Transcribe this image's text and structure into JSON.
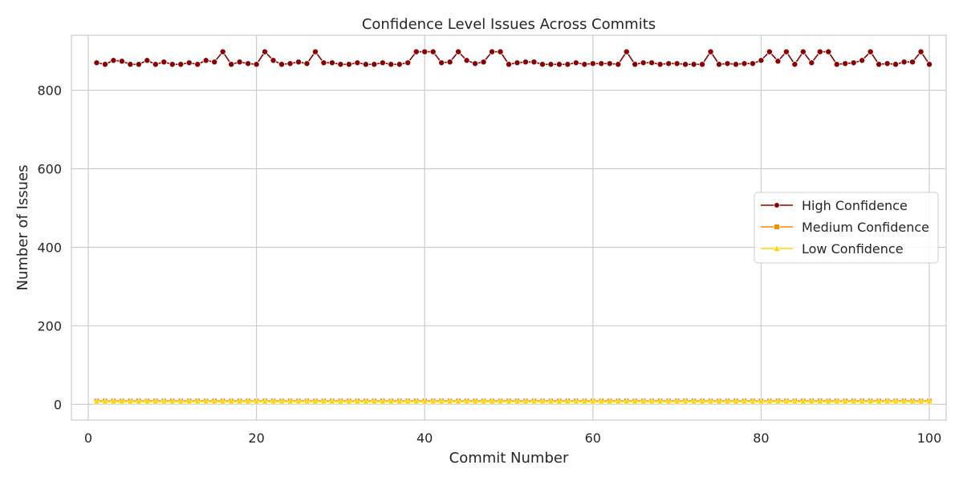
{
  "chart_data": {
    "type": "line",
    "title": "Confidence Level Issues Across Commits",
    "xlabel": "Commit Number",
    "ylabel": "Number of Issues",
    "xlim": [
      -2,
      102
    ],
    "ylim": [
      -40,
      940
    ],
    "xticks": [
      0,
      20,
      40,
      60,
      80,
      100
    ],
    "yticks": [
      0,
      200,
      400,
      600,
      800
    ],
    "grid": true,
    "legend_position": "center-right",
    "x": [
      1,
      2,
      3,
      4,
      5,
      6,
      7,
      8,
      9,
      10,
      11,
      12,
      13,
      14,
      15,
      16,
      17,
      18,
      19,
      20,
      21,
      22,
      23,
      24,
      25,
      26,
      27,
      28,
      29,
      30,
      31,
      32,
      33,
      34,
      35,
      36,
      37,
      38,
      39,
      40,
      41,
      42,
      43,
      44,
      45,
      46,
      47,
      48,
      49,
      50,
      51,
      52,
      53,
      54,
      55,
      56,
      57,
      58,
      59,
      60,
      61,
      62,
      63,
      64,
      65,
      66,
      67,
      68,
      69,
      70,
      71,
      72,
      73,
      74,
      75,
      76,
      77,
      78,
      79,
      80,
      81,
      82,
      83,
      84,
      85,
      86,
      87,
      88,
      89,
      90,
      91,
      92,
      93,
      94,
      95,
      96,
      97,
      98,
      99,
      100
    ],
    "series": [
      {
        "name": "High Confidence",
        "color": "#8b0000",
        "marker": "circle",
        "values": [
          870,
          866,
          876,
          874,
          866,
          866,
          876,
          866,
          872,
          866,
          866,
          870,
          866,
          876,
          872,
          898,
          866,
          872,
          868,
          866,
          898,
          876,
          866,
          868,
          872,
          868,
          898,
          870,
          870,
          866,
          866,
          870,
          866,
          866,
          870,
          866,
          866,
          870,
          898,
          898,
          898,
          870,
          872,
          898,
          876,
          868,
          872,
          898,
          898,
          866,
          870,
          872,
          872,
          866,
          866,
          866,
          866,
          870,
          866,
          868,
          868,
          868,
          866,
          898,
          866,
          870,
          870,
          866,
          868,
          868,
          866,
          866,
          866,
          898,
          866,
          868,
          866,
          868,
          868,
          876,
          898,
          874,
          898,
          866,
          898,
          870,
          898,
          898,
          866,
          868,
          870,
          876,
          898,
          866,
          868,
          866,
          872,
          872,
          898,
          866
        ]
      },
      {
        "name": "Medium Confidence",
        "color": "#ff8c00",
        "marker": "square",
        "values": [
          9,
          9,
          9,
          9,
          9,
          9,
          9,
          9,
          9,
          9,
          9,
          9,
          9,
          9,
          9,
          9,
          9,
          9,
          9,
          9,
          9,
          9,
          9,
          9,
          9,
          9,
          9,
          9,
          9,
          9,
          9,
          9,
          9,
          9,
          9,
          9,
          9,
          9,
          9,
          9,
          9,
          9,
          9,
          9,
          9,
          9,
          9,
          9,
          9,
          9,
          9,
          9,
          9,
          9,
          9,
          9,
          9,
          9,
          9,
          9,
          9,
          9,
          9,
          9,
          9,
          9,
          9,
          9,
          9,
          9,
          9,
          9,
          9,
          9,
          9,
          9,
          9,
          9,
          9,
          9,
          9,
          9,
          9,
          9,
          9,
          9,
          9,
          9,
          9,
          9,
          9,
          9,
          9,
          9,
          9,
          9,
          9,
          9,
          9,
          9
        ]
      },
      {
        "name": "Low Confidence",
        "color": "#ffd700",
        "marker": "triangle",
        "values": [
          7,
          7,
          7,
          7,
          7,
          7,
          7,
          7,
          7,
          7,
          7,
          7,
          7,
          7,
          7,
          7,
          7,
          7,
          7,
          7,
          7,
          7,
          7,
          7,
          7,
          7,
          7,
          7,
          7,
          7,
          7,
          7,
          7,
          7,
          7,
          7,
          7,
          7,
          7,
          7,
          7,
          7,
          7,
          7,
          7,
          7,
          7,
          7,
          7,
          7,
          7,
          7,
          7,
          7,
          7,
          7,
          7,
          7,
          7,
          7,
          7,
          7,
          7,
          7,
          7,
          7,
          7,
          7,
          7,
          7,
          7,
          7,
          7,
          7,
          7,
          7,
          7,
          7,
          7,
          7,
          7,
          7,
          7,
          7,
          7,
          7,
          7,
          7,
          7,
          7,
          7,
          7,
          7,
          7,
          7,
          7,
          7,
          7,
          7,
          7
        ]
      }
    ]
  }
}
